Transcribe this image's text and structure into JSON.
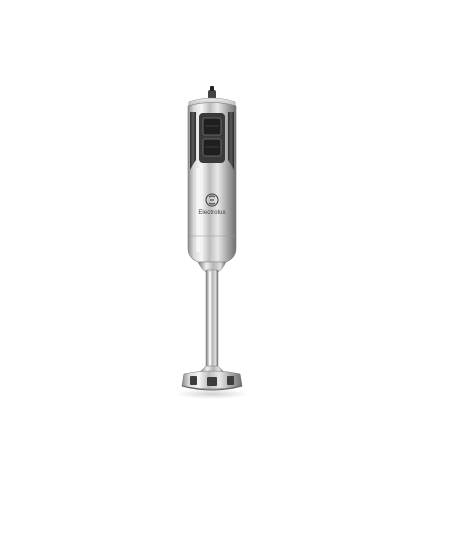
{
  "photo": {
    "subject_icon": "hand-blender-icon",
    "background_color": "#ffffff",
    "body_color": "#c9c9c9",
    "grip_color": "#4a4a4a"
  },
  "brand": {
    "logo_text": "Electrolux"
  }
}
